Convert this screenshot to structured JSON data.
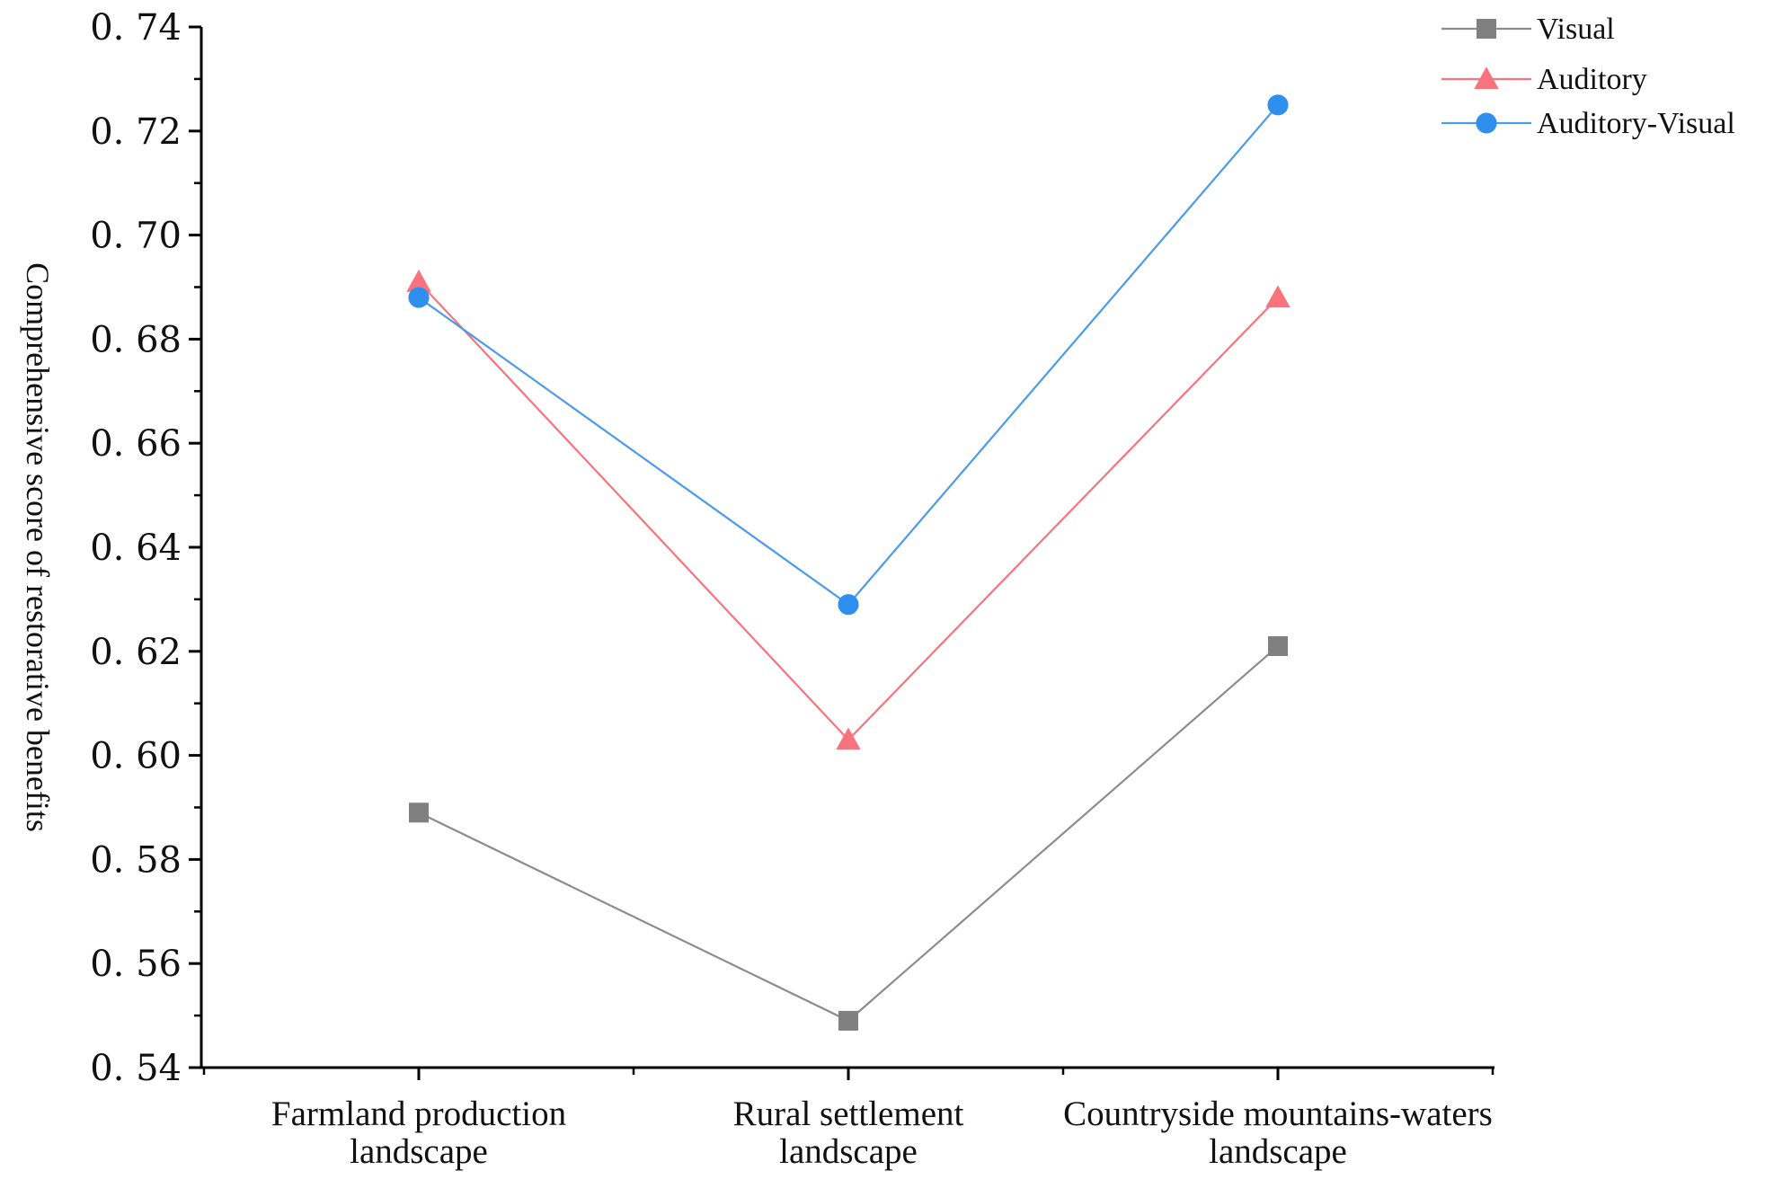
{
  "chart_data": {
    "type": "line",
    "categories": [
      [
        "Farmland production",
        "landscape"
      ],
      [
        "Rural settlement",
        "landscape"
      ],
      [
        "Countryside mountains-waters",
        "landscape"
      ]
    ],
    "series": [
      {
        "name": "Visual",
        "values": [
          0.589,
          0.549,
          0.621
        ],
        "color": "#808080",
        "line_color": "#8c8c8c",
        "marker": "square"
      },
      {
        "name": "Auditory",
        "values": [
          0.691,
          0.603,
          0.688
        ],
        "color": "#f8737d",
        "line_color": "#f8737d",
        "marker": "triangle"
      },
      {
        "name": "Auditory-Visual",
        "values": [
          0.688,
          0.629,
          0.725
        ],
        "color": "#2f8fef",
        "line_color": "#4a9be8",
        "marker": "circle"
      }
    ],
    "ylabel": "Comprehensive score of restorative benefits",
    "ylim": [
      0.54,
      0.74
    ],
    "yticks": [
      0.54,
      0.56,
      0.58,
      0.6,
      0.62,
      0.64,
      0.66,
      0.68,
      0.7,
      0.72,
      0.74
    ],
    "ytick_labels": [
      "0. 54",
      "0. 56",
      "0. 58",
      "0. 60",
      "0. 62",
      "0. 64",
      "0. 66",
      "0. 68",
      "0. 70",
      "0. 72",
      "0. 74"
    ],
    "grid": false,
    "legend": "top-right"
  }
}
